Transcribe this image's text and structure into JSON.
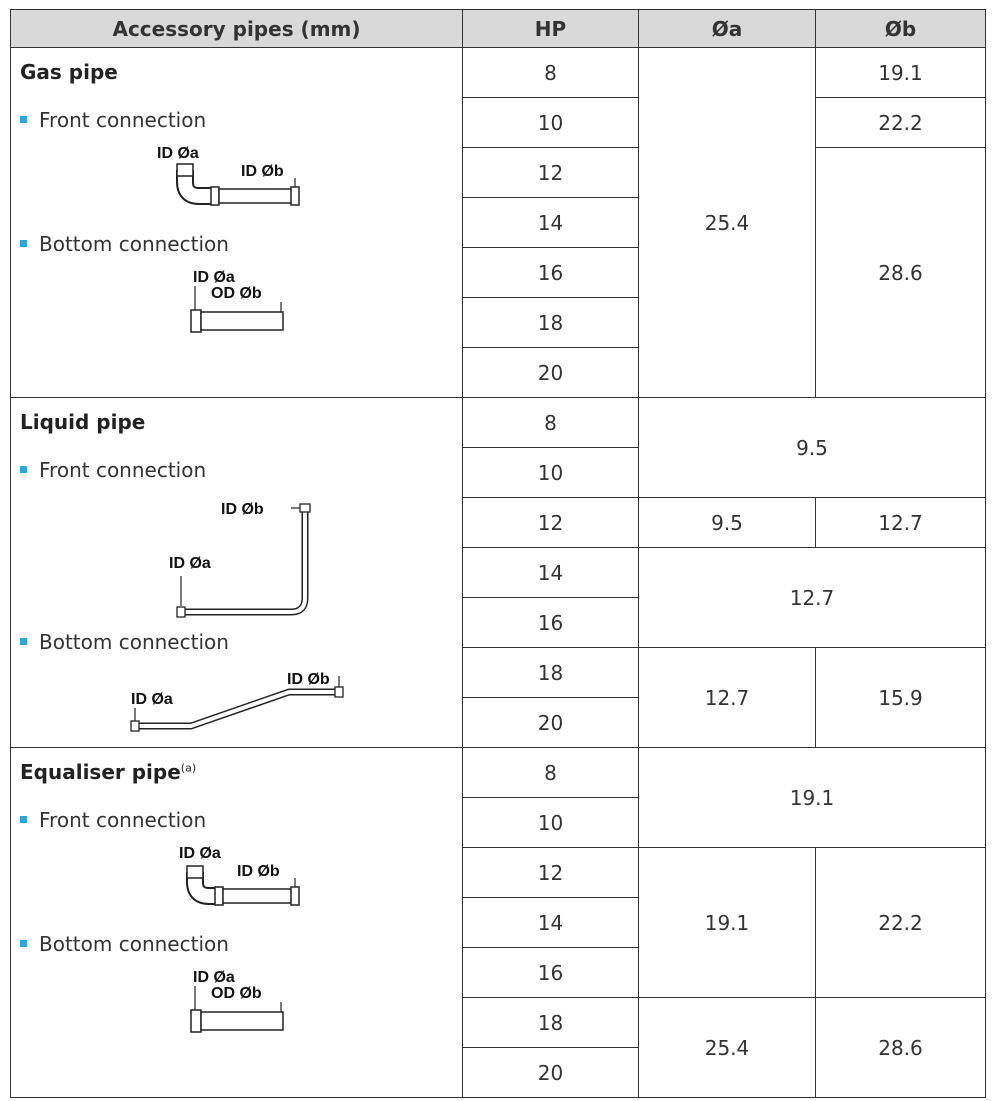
{
  "header": {
    "col_pipe": "Accessory pipes (mm)",
    "col_hp": "HP",
    "col_a": "Øa",
    "col_b": "Øb"
  },
  "labels": {
    "front": "Front connection",
    "bottom": "Bottom connection",
    "id_a": "ID Øa",
    "id_b": "ID Øb",
    "od_b": "OD Øb"
  },
  "sections": [
    {
      "title": "Gas pipe",
      "footnote": "",
      "hp": [
        "8",
        "10",
        "12",
        "14",
        "16",
        "18",
        "20"
      ],
      "a": [
        "25.4"
      ],
      "b": [
        "19.1",
        "22.2",
        "28.6"
      ]
    },
    {
      "title": "Liquid pipe",
      "footnote": "",
      "hp": [
        "8",
        "10",
        "12",
        "14",
        "16",
        "18",
        "20"
      ],
      "merged": [
        "9.5",
        "12.7"
      ],
      "a": [
        "9.5",
        "12.7"
      ],
      "b": [
        "12.7",
        "15.9"
      ]
    },
    {
      "title": "Equaliser pipe",
      "footnote": "(a)",
      "hp": [
        "8",
        "10",
        "12",
        "14",
        "16",
        "18",
        "20"
      ],
      "merged": [
        "19.1"
      ],
      "a": [
        "19.1",
        "25.4"
      ],
      "b": [
        "22.2",
        "28.6"
      ]
    }
  ]
}
